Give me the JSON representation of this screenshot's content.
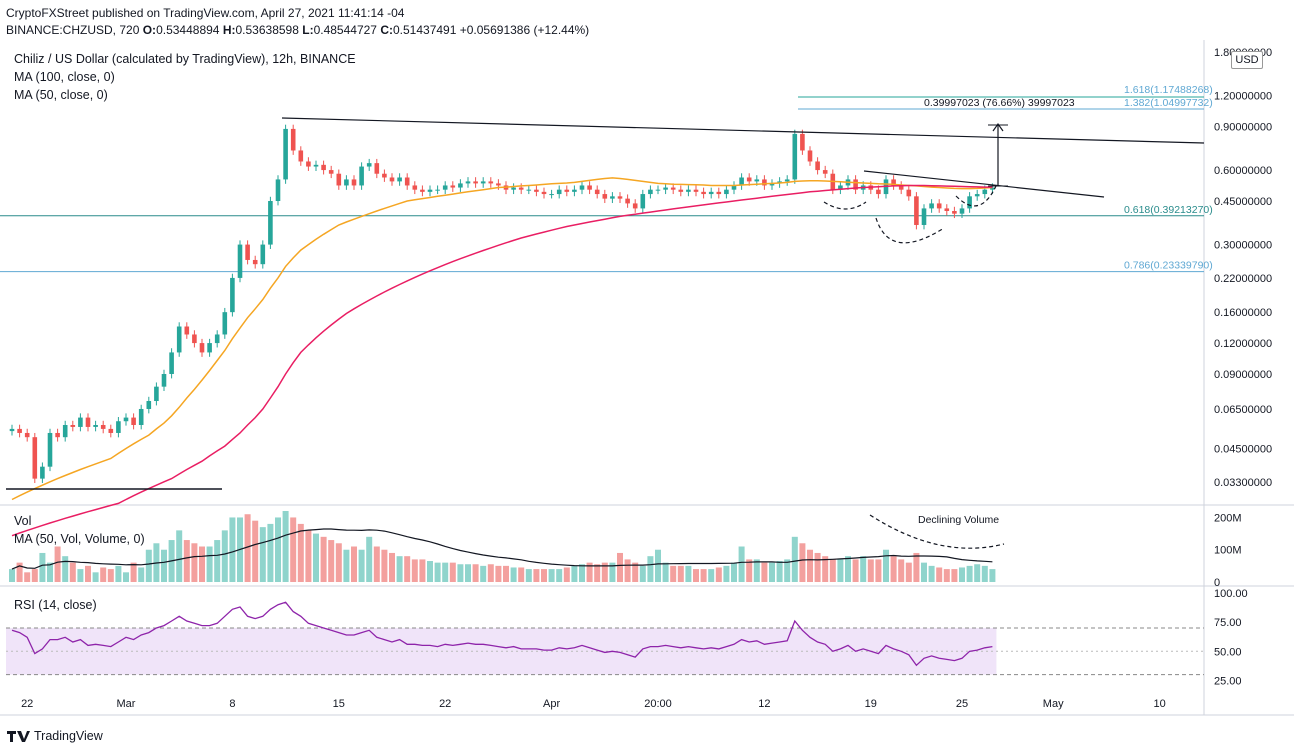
{
  "header": {
    "publisher": "CryptoFXStreet published on TradingView.com, April 27, 2021 11:41:14 -04",
    "symbol": "BINANCE:CHZUSD, 720",
    "open_label": "O:",
    "open": "0.53448894",
    "high_label": "H:",
    "high": "0.53638598",
    "low_label": "L:",
    "low": "0.48544727",
    "close_label": "C:",
    "close": "0.51437491",
    "change": "+0.05691386 (+12.44%)"
  },
  "legend": {
    "title": "Chiliz / US Dollar (calculated by TradingView), 12h, BINANCE",
    "ma100": "MA (100, close, 0)",
    "ma50": "MA (50, close, 0)",
    "vol": "Vol",
    "vol_ma": "MA (50, Vol, Volume, 0)",
    "rsi": "RSI (14, close)"
  },
  "currency_badge": "USD",
  "footer": {
    "brand": "TradingView"
  },
  "chart_data": {
    "type": "candlestick",
    "title": "Chiliz / US Dollar (calculated by TradingView), 12h, BINANCE",
    "scale": "log",
    "price_ticks": [
      "1.80000000",
      "1.20000000",
      "0.90000000",
      "0.60000000",
      "0.45000000",
      "0.30000000",
      "0.22000000",
      "0.16000000",
      "0.12000000",
      "0.09000000",
      "0.06500000",
      "0.04500000",
      "0.03300000"
    ],
    "price_tick_values": [
      1.8,
      1.2,
      0.9,
      0.6,
      0.45,
      0.3,
      0.22,
      0.16,
      0.12,
      0.09,
      0.065,
      0.045,
      0.033
    ],
    "x_ticks": [
      "22",
      "Mar",
      "8",
      "15",
      "22",
      "Apr",
      "20:00",
      "12",
      "19",
      "25",
      "May",
      "10"
    ],
    "x_tick_index": [
      2,
      15,
      29,
      43,
      57,
      71,
      85,
      99,
      113,
      125,
      137,
      151
    ],
    "closes": [
      0.054,
      0.052,
      0.05,
      0.034,
      0.038,
      0.052,
      0.05,
      0.056,
      0.055,
      0.06,
      0.055,
      0.056,
      0.054,
      0.052,
      0.058,
      0.06,
      0.056,
      0.065,
      0.07,
      0.08,
      0.09,
      0.11,
      0.14,
      0.13,
      0.12,
      0.11,
      0.12,
      0.13,
      0.16,
      0.22,
      0.3,
      0.26,
      0.25,
      0.3,
      0.45,
      0.55,
      0.88,
      0.72,
      0.65,
      0.62,
      0.63,
      0.6,
      0.58,
      0.52,
      0.55,
      0.52,
      0.62,
      0.64,
      0.58,
      0.56,
      0.54,
      0.56,
      0.52,
      0.5,
      0.49,
      0.5,
      0.5,
      0.52,
      0.51,
      0.53,
      0.54,
      0.53,
      0.54,
      0.53,
      0.52,
      0.5,
      0.51,
      0.5,
      0.5,
      0.49,
      0.48,
      0.48,
      0.5,
      0.49,
      0.5,
      0.52,
      0.5,
      0.48,
      0.46,
      0.47,
      0.46,
      0.44,
      0.42,
      0.48,
      0.5,
      0.5,
      0.51,
      0.5,
      0.49,
      0.5,
      0.49,
      0.48,
      0.49,
      0.48,
      0.5,
      0.52,
      0.56,
      0.54,
      0.55,
      0.52,
      0.53,
      0.54,
      0.55,
      0.84,
      0.72,
      0.65,
      0.6,
      0.58,
      0.5,
      0.52,
      0.55,
      0.5,
      0.52,
      0.5,
      0.48,
      0.55,
      0.52,
      0.5,
      0.47,
      0.36,
      0.42,
      0.44,
      0.42,
      0.41,
      0.4,
      0.42,
      0.47,
      0.48,
      0.5,
      0.51
    ],
    "ma50": [
      0.028,
      0.029,
      0.03,
      0.031,
      0.032,
      0.033,
      0.034,
      0.035,
      0.036,
      0.037,
      0.038,
      0.039,
      0.04,
      0.041,
      0.043,
      0.045,
      0.047,
      0.049,
      0.051,
      0.054,
      0.057,
      0.061,
      0.066,
      0.072,
      0.078,
      0.085,
      0.093,
      0.102,
      0.112,
      0.125,
      0.138,
      0.152,
      0.165,
      0.18,
      0.2,
      0.22,
      0.245,
      0.265,
      0.285,
      0.3,
      0.315,
      0.33,
      0.345,
      0.36,
      0.37,
      0.38,
      0.39,
      0.4,
      0.41,
      0.42,
      0.43,
      0.44,
      0.45,
      0.455,
      0.46,
      0.465,
      0.47,
      0.475,
      0.48,
      0.485,
      0.49,
      0.495,
      0.5,
      0.505,
      0.51,
      0.512,
      0.515,
      0.518,
      0.52,
      0.522,
      0.525,
      0.528,
      0.53,
      0.532,
      0.535,
      0.54,
      0.545,
      0.55,
      0.555,
      0.558,
      0.555,
      0.55,
      0.545,
      0.54,
      0.535,
      0.53,
      0.528,
      0.526,
      0.525,
      0.524,
      0.523,
      0.522,
      0.52,
      0.52,
      0.52,
      0.52,
      0.522,
      0.524,
      0.526,
      0.528,
      0.53,
      0.532,
      0.535,
      0.54,
      0.542,
      0.543,
      0.543,
      0.542,
      0.54,
      0.538,
      0.536,
      0.534,
      0.532,
      0.53,
      0.528,
      0.527,
      0.525,
      0.522,
      0.52,
      0.518,
      0.515,
      0.512,
      0.51,
      0.508,
      0.506,
      0.505,
      0.505,
      0.506,
      0.508,
      0.51
    ],
    "ma100": [
      0.02,
      0.0205,
      0.021,
      0.0215,
      0.022,
      0.0225,
      0.023,
      0.0235,
      0.024,
      0.0245,
      0.025,
      0.0255,
      0.026,
      0.0265,
      0.027,
      0.028,
      0.029,
      0.03,
      0.031,
      0.032,
      0.033,
      0.034,
      0.0355,
      0.037,
      0.0385,
      0.04,
      0.042,
      0.044,
      0.046,
      0.049,
      0.052,
      0.056,
      0.06,
      0.065,
      0.072,
      0.08,
      0.09,
      0.1,
      0.11,
      0.118,
      0.126,
      0.134,
      0.142,
      0.15,
      0.158,
      0.165,
      0.172,
      0.179,
      0.186,
      0.193,
      0.2,
      0.207,
      0.214,
      0.221,
      0.228,
      0.235,
      0.242,
      0.249,
      0.256,
      0.263,
      0.27,
      0.277,
      0.284,
      0.291,
      0.298,
      0.305,
      0.312,
      0.319,
      0.325,
      0.331,
      0.337,
      0.343,
      0.349,
      0.355,
      0.36,
      0.365,
      0.37,
      0.375,
      0.38,
      0.385,
      0.39,
      0.394,
      0.398,
      0.402,
      0.406,
      0.41,
      0.414,
      0.418,
      0.422,
      0.426,
      0.43,
      0.434,
      0.438,
      0.442,
      0.446,
      0.45,
      0.454,
      0.458,
      0.462,
      0.466,
      0.47,
      0.474,
      0.478,
      0.482,
      0.486,
      0.49,
      0.493,
      0.496,
      0.499,
      0.502,
      0.505,
      0.508,
      0.51,
      0.512,
      0.514,
      0.516,
      0.518,
      0.519,
      0.52,
      0.52,
      0.52,
      0.519,
      0.518,
      0.517,
      0.516,
      0.515,
      0.514,
      0.513,
      0.512,
      0.512
    ],
    "volume_ticks": [
      "200M",
      "100M",
      "0"
    ],
    "volumes": [
      40,
      60,
      30,
      40,
      90,
      60,
      110,
      80,
      60,
      40,
      50,
      30,
      45,
      40,
      50,
      30,
      60,
      45,
      100,
      120,
      100,
      130,
      160,
      130,
      120,
      110,
      110,
      130,
      160,
      200,
      200,
      210,
      190,
      170,
      180,
      200,
      220,
      200,
      180,
      160,
      150,
      140,
      130,
      120,
      100,
      110,
      100,
      140,
      110,
      100,
      90,
      80,
      80,
      70,
      70,
      65,
      60,
      60,
      60,
      55,
      55,
      55,
      50,
      55,
      50,
      50,
      45,
      45,
      40,
      40,
      40,
      40,
      40,
      45,
      50,
      55,
      60,
      55,
      60,
      60,
      90,
      70,
      60,
      50,
      80,
      100,
      60,
      50,
      50,
      50,
      40,
      40,
      40,
      45,
      50,
      60,
      110,
      70,
      70,
      60,
      60,
      65,
      70,
      140,
      120,
      100,
      90,
      80,
      70,
      70,
      80,
      70,
      80,
      70,
      70,
      100,
      80,
      70,
      60,
      90,
      60,
      50,
      45,
      40,
      40,
      45,
      50,
      55,
      50,
      40
    ],
    "rsi_ticks": [
      "100.00",
      "75.00",
      "50.00",
      "25.00"
    ],
    "rsi_values": [
      68,
      66,
      62,
      48,
      52,
      60,
      60,
      62,
      58,
      60,
      55,
      56,
      55,
      54,
      58,
      62,
      60,
      64,
      66,
      70,
      72,
      76,
      80,
      76,
      74,
      72,
      72,
      74,
      80,
      86,
      88,
      80,
      78,
      80,
      86,
      90,
      92,
      84,
      80,
      74,
      72,
      70,
      68,
      66,
      64,
      64,
      66,
      68,
      62,
      60,
      58,
      60,
      56,
      56,
      55,
      55,
      54,
      56,
      55,
      56,
      57,
      56,
      56,
      55,
      54,
      53,
      54,
      52,
      52,
      52,
      51,
      51,
      53,
      52,
      53,
      55,
      53,
      51,
      49,
      50,
      49,
      47,
      45,
      52,
      54,
      54,
      55,
      54,
      53,
      54,
      53,
      52,
      53,
      52,
      54,
      56,
      60,
      58,
      59,
      56,
      57,
      58,
      59,
      76,
      68,
      62,
      58,
      56,
      50,
      52,
      55,
      50,
      52,
      50,
      48,
      55,
      52,
      50,
      47,
      38,
      44,
      46,
      44,
      43,
      42,
      44,
      50,
      51,
      53,
      54
    ],
    "annotations": {
      "fib_1618": "1.618(1.17488268)",
      "fib_1382": "1.382(1.04997732)",
      "fib_0618": "0.618(0.39213270)",
      "fib_0786": "0.786(0.23339790)",
      "measure": "0.39997023 (76.66%) 39997023",
      "declining_volume": "Declining Volume"
    }
  }
}
